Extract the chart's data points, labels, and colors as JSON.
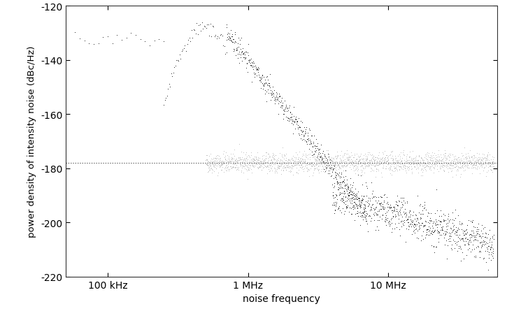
{
  "xlim": [
    50000,
    60000000
  ],
  "ylim": [
    -220,
    -120
  ],
  "yticks": [
    -220,
    -200,
    -180,
    -160,
    -140,
    -120
  ],
  "xtick_positions": [
    100000,
    1000000,
    10000000
  ],
  "xtick_labels": [
    "100 kHz",
    "1 MHz",
    "10 MHz"
  ],
  "xlabel": "noise frequency",
  "ylabel": "power density of intensity noise (dBc/Hz)",
  "hline_y": -178.0,
  "shot_noise_level": -178.0,
  "dark_color": "#1a1a1a",
  "light_color": "#aaaaaa",
  "dashed_line_color": "#555555",
  "background_color": "#ffffff",
  "seed": 42,
  "figsize": [
    7.25,
    4.56
  ],
  "dpi": 100
}
